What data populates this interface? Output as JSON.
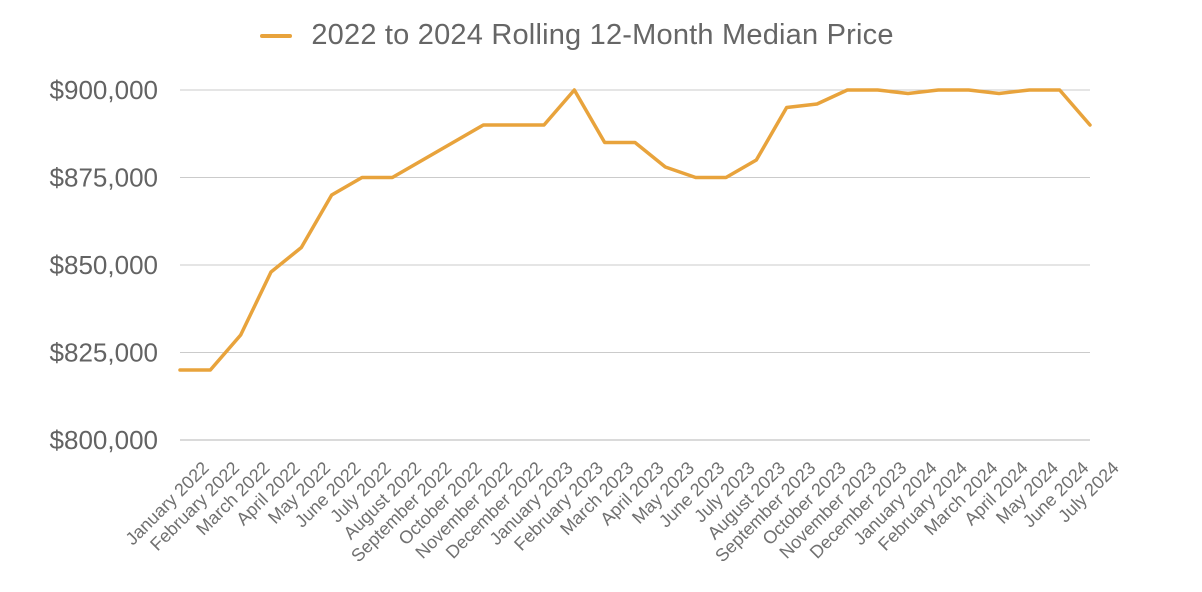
{
  "chart_data": {
    "type": "line",
    "title": "2022 to 2024 Rolling 12-Month Median Price",
    "legend_position": "top",
    "grid": "horizontal",
    "ylim": [
      800000,
      900000
    ],
    "y_ticks": [
      {
        "value": 900000,
        "label": "$900,000"
      },
      {
        "value": 875000,
        "label": "$875,000"
      },
      {
        "value": 850000,
        "label": "$850,000"
      },
      {
        "value": 825000,
        "label": "$825,000"
      },
      {
        "value": 800000,
        "label": "$800,000"
      }
    ],
    "categories": [
      "January 2022",
      "February 2022",
      "March 2022",
      "April 2022",
      "May 2022",
      "June 2022",
      "July 2022",
      "August 2022",
      "September 2022",
      "October 2022",
      "November 2022",
      "December 2022",
      "January 2023",
      "February 2023",
      "March 2023",
      "April 2023",
      "May 2023",
      "June 2023",
      "July 2023",
      "August 2023",
      "September 2023",
      "October 2023",
      "November 2023",
      "December 2023",
      "January 2024",
      "February 2024",
      "March 2024",
      "April 2024",
      "May 2024",
      "June 2024",
      "July 2024"
    ],
    "series": [
      {
        "name": "2022 to 2024 Rolling 12-Month Median Price",
        "color": "#E8A33C",
        "values": [
          820000,
          820000,
          830000,
          848000,
          855000,
          870000,
          875000,
          875000,
          880000,
          885000,
          890000,
          890000,
          890000,
          900000,
          885000,
          885000,
          878000,
          875000,
          875000,
          880000,
          895000,
          896000,
          900000,
          900000,
          899000,
          900000,
          900000,
          899000,
          900000,
          900000,
          890000
        ]
      }
    ],
    "colors": {
      "line": "#E8A33C",
      "gridline": "#cbcbcb",
      "baseline": "#b5b5b5",
      "title_text": "#666666",
      "y_axis_text": "#636363",
      "x_axis_text": "#707070",
      "background": "#ffffff"
    }
  }
}
